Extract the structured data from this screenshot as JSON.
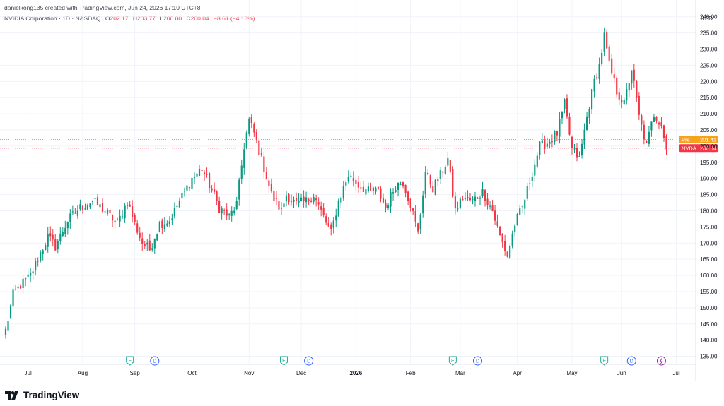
{
  "header": {
    "creator": "danielkong135 created with TradingView.com, Jun 24, 2026 17:10 UTC+8",
    "symbol": "NVIDIA Corporation · 1D · NASDAQ",
    "open_key": "O",
    "open": "202.17",
    "high_key": "H",
    "high": "203.77",
    "low_key": "L",
    "low": "200.00",
    "close_key": "C",
    "close": "200.04",
    "change": "−8.61 (−4.13%)"
  },
  "brand": {
    "name": "TradingView",
    "logo": "tradingview-logo"
  },
  "colors": {
    "up": "#089981",
    "down": "#f23645",
    "pre": "#f7a21b",
    "grid": "#f0f3fa",
    "axis_text": "#131722"
  },
  "chart_data": {
    "type": "candlestick",
    "currency": "USD",
    "ylim": [
      132.5,
      243
    ],
    "y_ticks": [
      135,
      140,
      145,
      150,
      155,
      160,
      165,
      170,
      175,
      180,
      185,
      190,
      195,
      200,
      205,
      210,
      215,
      220,
      225,
      230,
      235,
      240
    ],
    "x_labels": [
      {
        "label": "Jul",
        "i": 9,
        "bold": false
      },
      {
        "label": "Aug",
        "i": 31,
        "bold": false
      },
      {
        "label": "Sep",
        "i": 52,
        "bold": false
      },
      {
        "label": "Oct",
        "i": 75,
        "bold": false
      },
      {
        "label": "Nov",
        "i": 98,
        "bold": false
      },
      {
        "label": "Dec",
        "i": 119,
        "bold": false
      },
      {
        "label": "2026",
        "i": 141,
        "bold": true
      },
      {
        "label": "Feb",
        "i": 163,
        "bold": false
      },
      {
        "label": "Mar",
        "i": 183,
        "bold": false
      },
      {
        "label": "Apr",
        "i": 206,
        "bold": false
      },
      {
        "label": "May",
        "i": 228,
        "bold": false
      },
      {
        "label": "Jun",
        "i": 248,
        "bold": false
      },
      {
        "label": "Jul",
        "i": 270,
        "bold": false
      }
    ],
    "markers": [
      {
        "type": "E",
        "i": 50
      },
      {
        "type": "D",
        "i": 60
      },
      {
        "type": "E",
        "i": 112
      },
      {
        "type": "D",
        "i": 122
      },
      {
        "type": "E",
        "i": 180
      },
      {
        "type": "D",
        "i": 190
      },
      {
        "type": "E",
        "i": 241
      },
      {
        "type": "D",
        "i": 252
      },
      {
        "type": "S",
        "i": 264
      }
    ],
    "price_lines": [
      {
        "name": "Pre",
        "value": 201.41,
        "color": "#f7a21b",
        "label": "201.41"
      },
      {
        "name": "NVDA",
        "value": 200.04,
        "color": "#f23645",
        "label": "200.04"
      }
    ],
    "pivots": [
      [
        0,
        143
      ],
      [
        3,
        154
      ],
      [
        6,
        157
      ],
      [
        10,
        160
      ],
      [
        14,
        167
      ],
      [
        17,
        172
      ],
      [
        20,
        169
      ],
      [
        25,
        177
      ],
      [
        30,
        181
      ],
      [
        35,
        183
      ],
      [
        40,
        180
      ],
      [
        45,
        176
      ],
      [
        49,
        183
      ],
      [
        52,
        176
      ],
      [
        55,
        170
      ],
      [
        58,
        168
      ],
      [
        62,
        176
      ],
      [
        66,
        177
      ],
      [
        70,
        183
      ],
      [
        75,
        190
      ],
      [
        79,
        193
      ],
      [
        82,
        188
      ],
      [
        86,
        181
      ],
      [
        90,
        178
      ],
      [
        93,
        182
      ],
      [
        96,
        200
      ],
      [
        98,
        208
      ],
      [
        100,
        204
      ],
      [
        103,
        196
      ],
      [
        107,
        185
      ],
      [
        111,
        180
      ],
      [
        113,
        185
      ],
      [
        117,
        182
      ],
      [
        121,
        183
      ],
      [
        124,
        185
      ],
      [
        128,
        178
      ],
      [
        131,
        173
      ],
      [
        134,
        183
      ],
      [
        138,
        191
      ],
      [
        142,
        188
      ],
      [
        146,
        186
      ],
      [
        150,
        186
      ],
      [
        153,
        181
      ],
      [
        157,
        188
      ],
      [
        160,
        189
      ],
      [
        163,
        182
      ],
      [
        166,
        173
      ],
      [
        169,
        192
      ],
      [
        172,
        187
      ],
      [
        175,
        191
      ],
      [
        178,
        196
      ],
      [
        181,
        180
      ],
      [
        184,
        184
      ],
      [
        188,
        183
      ],
      [
        192,
        186
      ],
      [
        196,
        180
      ],
      [
        199,
        172
      ],
      [
        202,
        166
      ],
      [
        205,
        176
      ],
      [
        208,
        181
      ],
      [
        212,
        192
      ],
      [
        215,
        200
      ],
      [
        218,
        201
      ],
      [
        222,
        204
      ],
      [
        225,
        213
      ],
      [
        228,
        199
      ],
      [
        231,
        196
      ],
      [
        234,
        209
      ],
      [
        237,
        220
      ],
      [
        239,
        225
      ],
      [
        241,
        234
      ],
      [
        243,
        225
      ],
      [
        246,
        217
      ],
      [
        249,
        213
      ],
      [
        252,
        224
      ],
      [
        255,
        209
      ],
      [
        258,
        200
      ],
      [
        261,
        210
      ],
      [
        264,
        207
      ],
      [
        266,
        199
      ]
    ]
  }
}
